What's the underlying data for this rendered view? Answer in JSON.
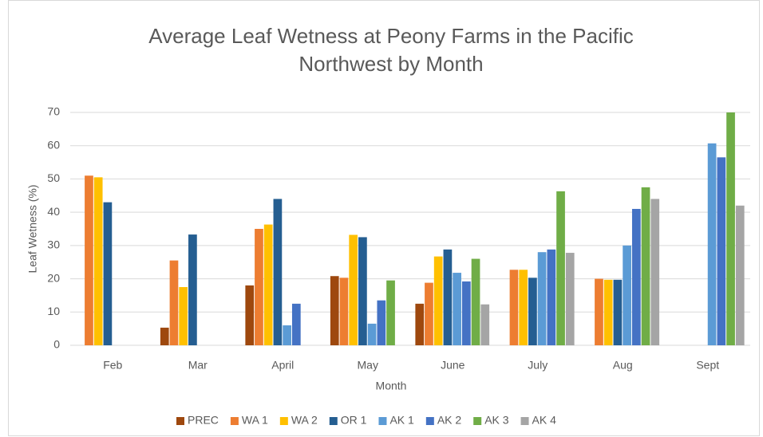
{
  "chart_data": {
    "type": "bar",
    "title": [
      "Average Leaf Wetness at Peony Farms in the Pacific",
      "Northwest by Month"
    ],
    "x_label": "Month",
    "y_label": "Leaf Wetness (%)",
    "categories": [
      "Feb",
      "Mar",
      "April",
      "May",
      "June",
      "July",
      "Aug",
      "Sept"
    ],
    "series": [
      {
        "name": "PREC",
        "color": "#9e480e",
        "values": [
          null,
          5.3,
          18,
          20.8,
          12.5,
          null,
          null,
          null
        ]
      },
      {
        "name": "WA 1",
        "color": "#ed7d31",
        "values": [
          51,
          25.5,
          35,
          20.3,
          18.8,
          22.7,
          20,
          null
        ]
      },
      {
        "name": "WA 2",
        "color": "#ffc000",
        "values": [
          50.5,
          17.5,
          36.3,
          33.2,
          26.7,
          22.7,
          19.7,
          null
        ]
      },
      {
        "name": "OR 1",
        "color": "#255e91",
        "values": [
          43,
          33.3,
          44,
          32.5,
          28.8,
          20.3,
          19.7,
          null
        ]
      },
      {
        "name": "AK 1",
        "color": "#5b9bd5",
        "values": [
          null,
          null,
          6,
          6.5,
          21.8,
          28,
          30,
          60.7
        ]
      },
      {
        "name": "AK 2",
        "color": "#4472c4",
        "values": [
          null,
          null,
          12.5,
          13.5,
          19.2,
          28.8,
          41,
          56.5
        ]
      },
      {
        "name": "AK 3",
        "color": "#70ad47",
        "values": [
          null,
          null,
          null,
          19.5,
          26,
          46.3,
          47.5,
          70
        ]
      },
      {
        "name": "AK 4",
        "color": "#a5a5a5",
        "values": [
          null,
          null,
          null,
          null,
          12.3,
          27.8,
          44,
          42
        ]
      }
    ],
    "ylim": [
      0,
      70
    ],
    "yticks": [
      0,
      10,
      20,
      30,
      40,
      50,
      60,
      70
    ],
    "grid": true,
    "legend": "bottom"
  }
}
